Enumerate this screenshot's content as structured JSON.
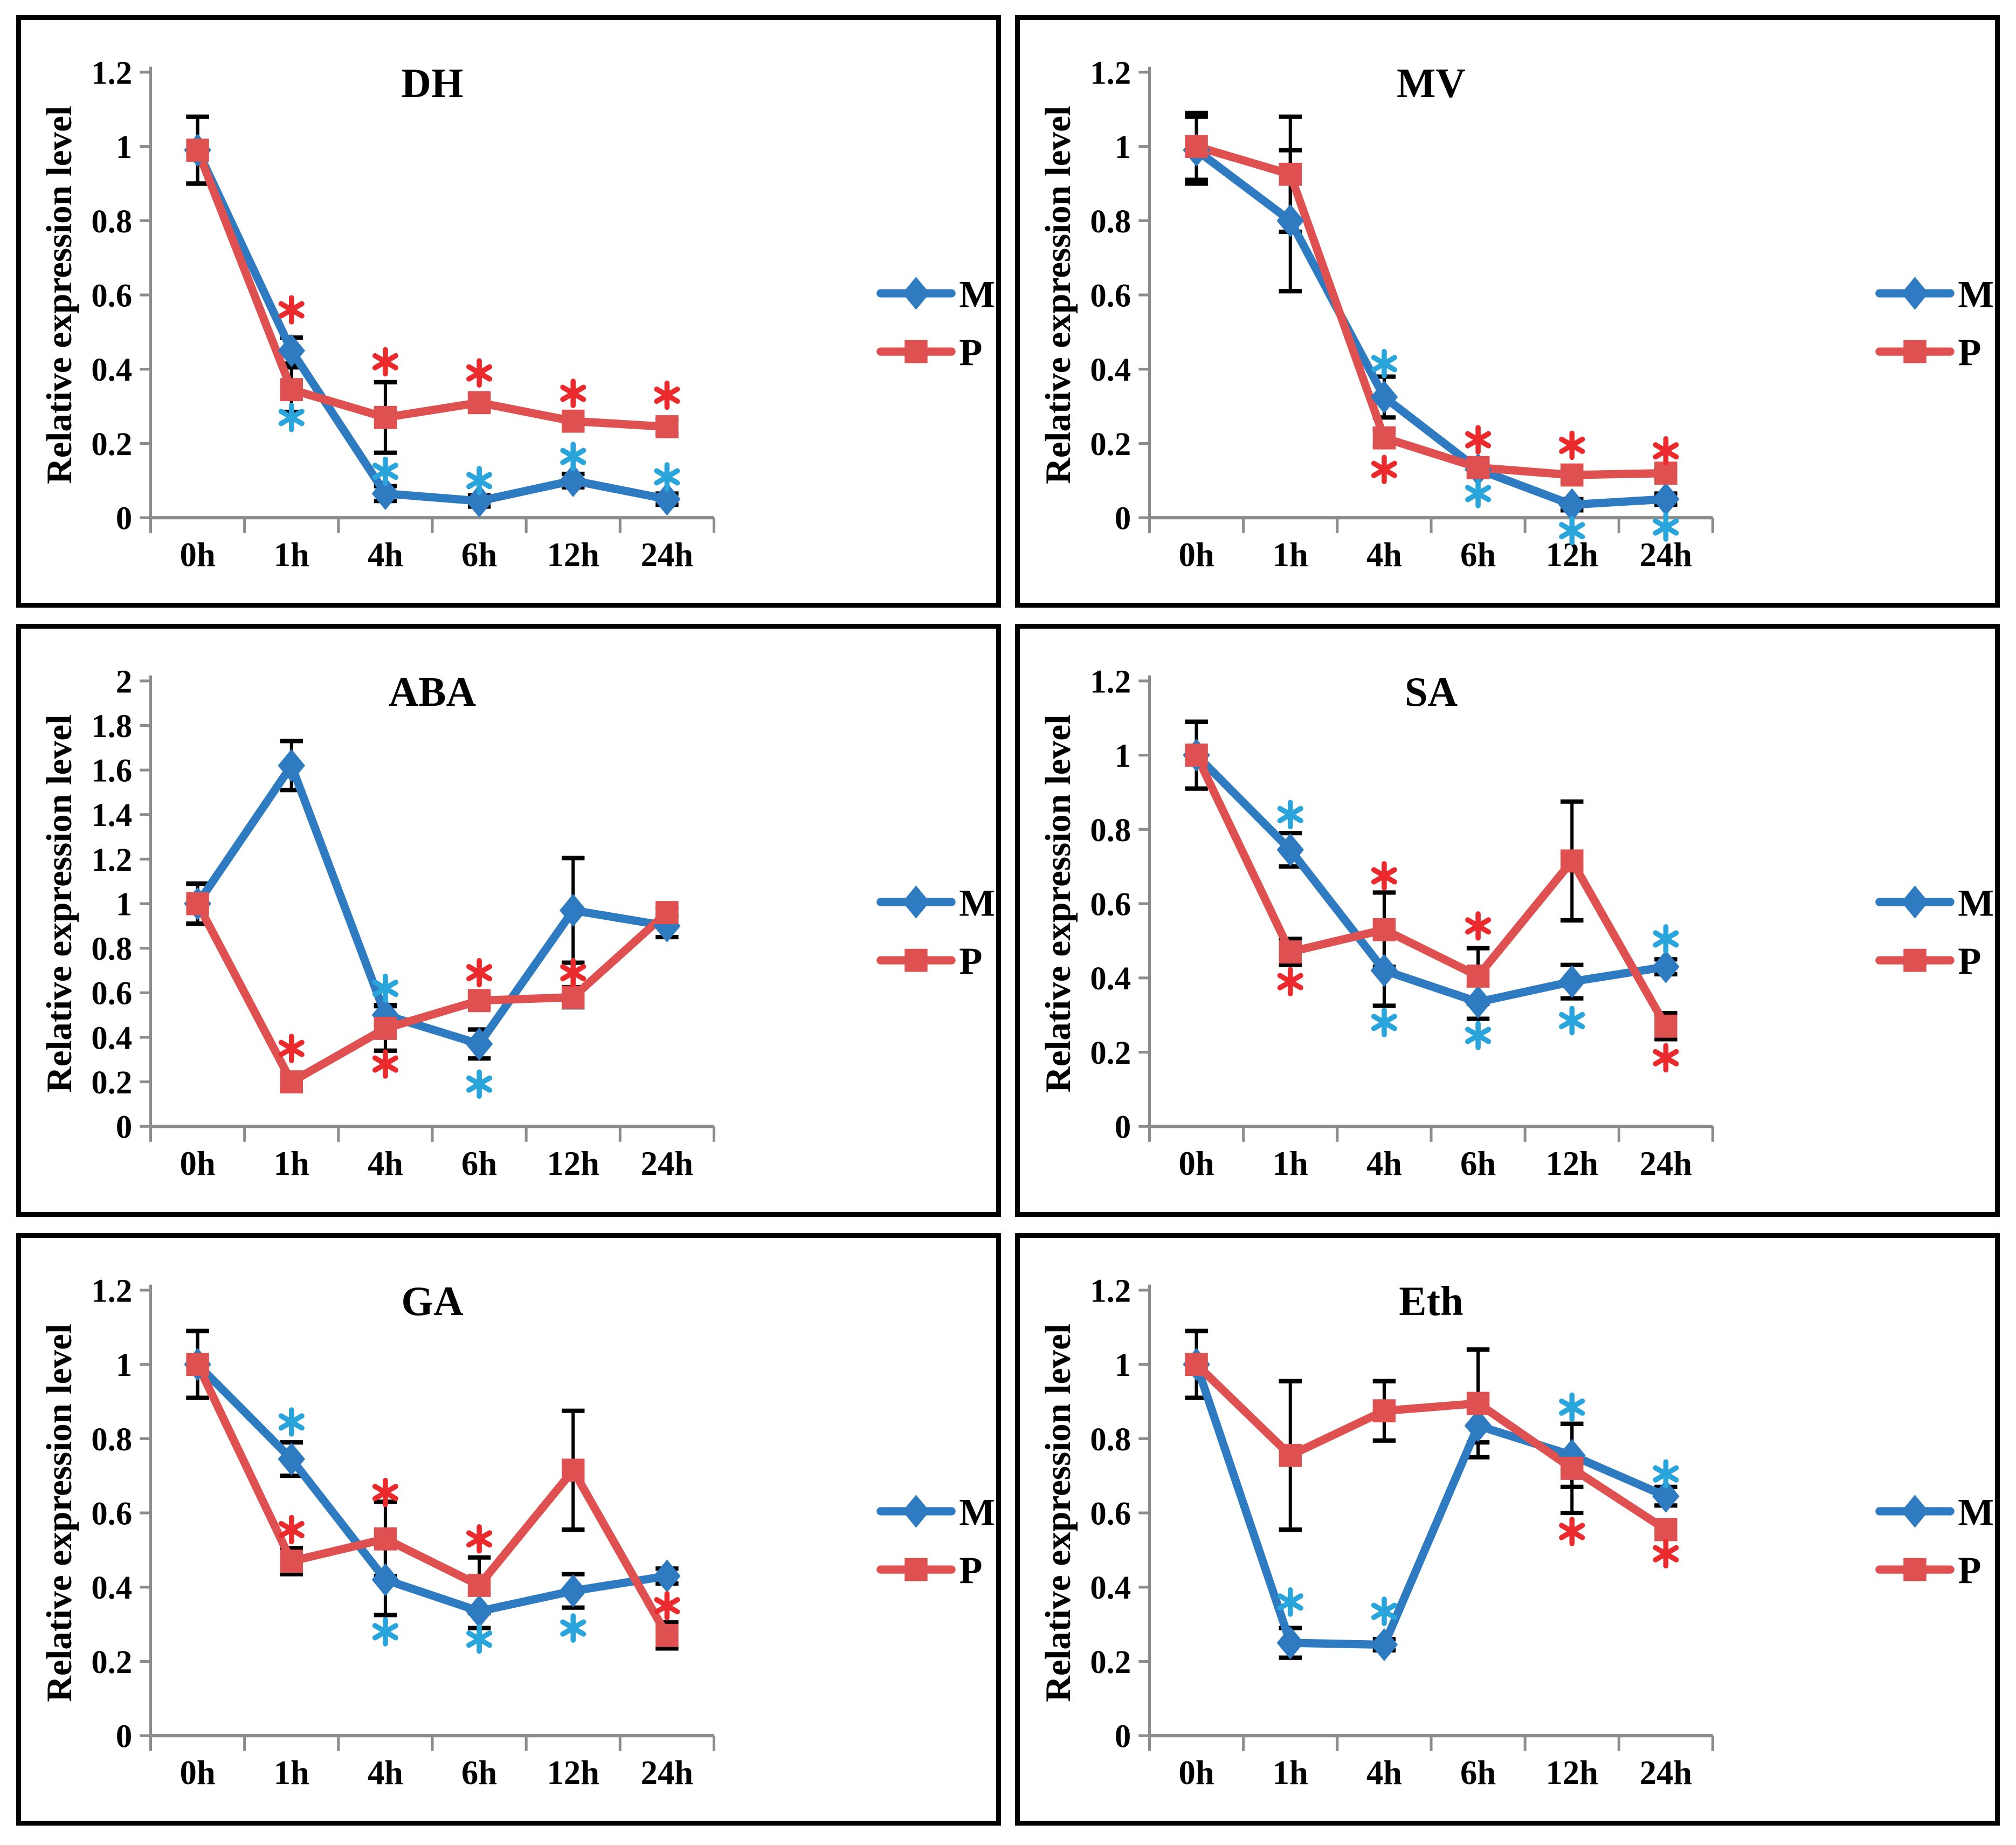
{
  "figure": {
    "rows": 3,
    "cols": 2,
    "y_axis_title": "Relative expression level",
    "categories": [
      "0h",
      "1h",
      "4h",
      "6h",
      "12h",
      "24h"
    ],
    "legend": {
      "entries": [
        {
          "label": "M"
        },
        {
          "label": "P"
        }
      ]
    }
  },
  "colors": {
    "m_line": "#2E7BC1",
    "p_line": "#DF5150",
    "m_asterisk": "#2AA5DC",
    "p_asterisk": "#EA2A2C",
    "axis": "#8C8C8C",
    "error_bar": "#000000",
    "text": "#000000",
    "panel_border": "#000000"
  },
  "chart_data": [
    {
      "type": "line",
      "title": "DH",
      "xlabel": "",
      "ylabel": "Relative expression level",
      "x": [
        "0h",
        "1h",
        "4h",
        "6h",
        "12h",
        "24h"
      ],
      "ylim": [
        0,
        1.2
      ],
      "yticks": [
        0,
        0.2,
        0.4,
        0.6,
        0.8,
        1,
        1.2
      ],
      "ytick_labels": [
        "0",
        "0.2",
        "0.4",
        "0.6",
        "0.8",
        "1",
        "1.2"
      ],
      "legend_position": "right",
      "grid": false,
      "series": [
        {
          "name": "M",
          "marker": "diamond",
          "values": [
            0.99,
            0.45,
            0.065,
            0.045,
            0.1,
            0.05
          ],
          "errors": [
            0.09,
            0.035,
            0.02,
            0.015,
            0.018,
            0.015
          ]
        },
        {
          "name": "P",
          "marker": "square",
          "values": [
            0.99,
            0.345,
            0.27,
            0.31,
            0.26,
            0.245
          ],
          "errors": [
            0.09,
            0.06,
            0.095,
            0.022,
            0.02,
            0.02
          ]
        }
      ],
      "asterisks": [
        {
          "cat": 1,
          "series": "P",
          "y": 0.56
        },
        {
          "cat": 2,
          "series": "P",
          "y": 0.42
        },
        {
          "cat": 3,
          "series": "P",
          "y": 0.39
        },
        {
          "cat": 4,
          "series": "P",
          "y": 0.335
        },
        {
          "cat": 5,
          "series": "P",
          "y": 0.33
        },
        {
          "cat": 1,
          "series": "M",
          "y": 0.27
        },
        {
          "cat": 2,
          "series": "M",
          "y": 0.125
        },
        {
          "cat": 3,
          "series": "M",
          "y": 0.1
        },
        {
          "cat": 4,
          "series": "M",
          "y": 0.165
        },
        {
          "cat": 5,
          "series": "M",
          "y": 0.11
        }
      ]
    },
    {
      "type": "line",
      "title": "MV",
      "xlabel": "",
      "ylabel": "Relative expression level",
      "x": [
        "0h",
        "1h",
        "4h",
        "6h",
        "12h",
        "24h"
      ],
      "ylim": [
        0,
        1.2
      ],
      "yticks": [
        0,
        0.2,
        0.4,
        0.6,
        0.8,
        1,
        1.2
      ],
      "ytick_labels": [
        "0",
        "0.2",
        "0.4",
        "0.6",
        "0.8",
        "1",
        "1.2"
      ],
      "legend_position": "right",
      "grid": false,
      "series": [
        {
          "name": "M",
          "marker": "diamond",
          "values": [
            0.99,
            0.8,
            0.325,
            0.13,
            0.035,
            0.05
          ],
          "errors": [
            0.09,
            0.19,
            0.055,
            0.02,
            0.015,
            0.015
          ]
        },
        {
          "name": "P",
          "marker": "square",
          "values": [
            1.0,
            0.925,
            0.215,
            0.135,
            0.115,
            0.12
          ],
          "errors": [
            0.09,
            0.155,
            0.022,
            0.02,
            0.015,
            0.015
          ]
        }
      ],
      "asterisks": [
        {
          "cat": 2,
          "series": "M",
          "y": 0.415
        },
        {
          "cat": 2,
          "series": "P",
          "y": 0.13
        },
        {
          "cat": 3,
          "series": "P",
          "y": 0.21
        },
        {
          "cat": 3,
          "series": "M",
          "y": 0.065
        },
        {
          "cat": 4,
          "series": "P",
          "y": 0.195
        },
        {
          "cat": 4,
          "series": "M",
          "y": -0.035
        },
        {
          "cat": 5,
          "series": "P",
          "y": 0.18
        },
        {
          "cat": 5,
          "series": "M",
          "y": -0.025
        }
      ]
    },
    {
      "type": "line",
      "title": "ABA",
      "xlabel": "",
      "ylabel": "Relative expression level",
      "x": [
        "0h",
        "1h",
        "4h",
        "6h",
        "12h",
        "24h"
      ],
      "ylim": [
        0,
        2
      ],
      "yticks": [
        0,
        0.2,
        0.4,
        0.6,
        0.8,
        1,
        1.2,
        1.4,
        1.6,
        1.8,
        2
      ],
      "ytick_labels": [
        "0",
        "0.2",
        "0.4",
        "0.6",
        "0.8",
        "1",
        "1.2",
        "1.4",
        "1.6",
        "1.8",
        "2"
      ],
      "legend_position": "right",
      "grid": false,
      "series": [
        {
          "name": "M",
          "marker": "diamond",
          "values": [
            1.0,
            1.62,
            0.5,
            0.37,
            0.97,
            0.9
          ],
          "errors": [
            0.09,
            0.11,
            0.045,
            0.065,
            0.235,
            0.05
          ]
        },
        {
          "name": "P",
          "marker": "square",
          "values": [
            1.0,
            0.2,
            0.44,
            0.565,
            0.58,
            0.96
          ],
          "errors": [
            0.09,
            0.035,
            0.1,
            0.03,
            0.045,
            0.02
          ]
        }
      ],
      "asterisks": [
        {
          "cat": 1,
          "series": "P",
          "y": 0.35
        },
        {
          "cat": 2,
          "series": "M",
          "y": 0.62
        },
        {
          "cat": 2,
          "series": "P",
          "y": 0.28
        },
        {
          "cat": 3,
          "series": "P",
          "y": 0.69
        },
        {
          "cat": 3,
          "series": "M",
          "y": 0.19
        },
        {
          "cat": 4,
          "series": "P",
          "y": 0.69
        }
      ]
    },
    {
      "type": "line",
      "title": "SA",
      "xlabel": "",
      "ylabel": "Relative expression level",
      "x": [
        "0h",
        "1h",
        "4h",
        "6h",
        "12h",
        "24h"
      ],
      "ylim": [
        0,
        1.2
      ],
      "yticks": [
        0,
        0.2,
        0.4,
        0.6,
        0.8,
        1,
        1.2
      ],
      "ytick_labels": [
        "0",
        "0.2",
        "0.4",
        "0.6",
        "0.8",
        "1",
        "1.2"
      ],
      "legend_position": "right",
      "grid": false,
      "series": [
        {
          "name": "M",
          "marker": "diamond",
          "values": [
            1.0,
            0.745,
            0.42,
            0.335,
            0.39,
            0.43
          ],
          "errors": [
            0.09,
            0.045,
            0.095,
            0.045,
            0.045,
            0.02
          ]
        },
        {
          "name": "P",
          "marker": "square",
          "values": [
            1.0,
            0.47,
            0.53,
            0.405,
            0.715,
            0.27
          ],
          "errors": [
            0.09,
            0.035,
            0.1,
            0.075,
            0.16,
            0.035
          ]
        }
      ],
      "asterisks": [
        {
          "cat": 1,
          "series": "M",
          "y": 0.84
        },
        {
          "cat": 1,
          "series": "P",
          "y": 0.39
        },
        {
          "cat": 2,
          "series": "P",
          "y": 0.675
        },
        {
          "cat": 2,
          "series": "M",
          "y": 0.28
        },
        {
          "cat": 3,
          "series": "P",
          "y": 0.54
        },
        {
          "cat": 3,
          "series": "M",
          "y": 0.245
        },
        {
          "cat": 4,
          "series": "M",
          "y": 0.285
        },
        {
          "cat": 5,
          "series": "M",
          "y": 0.505
        },
        {
          "cat": 5,
          "series": "P",
          "y": 0.185
        }
      ]
    },
    {
      "type": "line",
      "title": "GA",
      "xlabel": "",
      "ylabel": "Relative expression level",
      "x": [
        "0h",
        "1h",
        "4h",
        "6h",
        "12h",
        "24h"
      ],
      "ylim": [
        0,
        1.2
      ],
      "yticks": [
        0,
        0.2,
        0.4,
        0.6,
        0.8,
        1,
        1.2
      ],
      "ytick_labels": [
        "0",
        "0.2",
        "0.4",
        "0.6",
        "0.8",
        "1",
        "1.2"
      ],
      "legend_position": "right",
      "grid": false,
      "series": [
        {
          "name": "M",
          "marker": "diamond",
          "values": [
            1.0,
            0.745,
            0.42,
            0.335,
            0.39,
            0.43
          ],
          "errors": [
            0.09,
            0.045,
            0.095,
            0.045,
            0.045,
            0.02
          ]
        },
        {
          "name": "P",
          "marker": "square",
          "values": [
            1.0,
            0.47,
            0.53,
            0.405,
            0.715,
            0.27
          ],
          "errors": [
            0.09,
            0.035,
            0.1,
            0.075,
            0.16,
            0.035
          ]
        }
      ],
      "asterisks": [
        {
          "cat": 1,
          "series": "M",
          "y": 0.845
        },
        {
          "cat": 1,
          "series": "P",
          "y": 0.555
        },
        {
          "cat": 2,
          "series": "P",
          "y": 0.655
        },
        {
          "cat": 2,
          "series": "M",
          "y": 0.28
        },
        {
          "cat": 3,
          "series": "P",
          "y": 0.53
        },
        {
          "cat": 3,
          "series": "M",
          "y": 0.26
        },
        {
          "cat": 4,
          "series": "M",
          "y": 0.29
        },
        {
          "cat": 5,
          "series": "P",
          "y": 0.35
        }
      ]
    },
    {
      "type": "line",
      "title": "Eth",
      "xlabel": "",
      "ylabel": "Relative expression level",
      "x": [
        "0h",
        "1h",
        "4h",
        "6h",
        "12h",
        "24h"
      ],
      "ylim": [
        0,
        1.2
      ],
      "yticks": [
        0,
        0.2,
        0.4,
        0.6,
        0.8,
        1,
        1.2
      ],
      "ytick_labels": [
        "0",
        "0.2",
        "0.4",
        "0.6",
        "0.8",
        "1",
        "1.2"
      ],
      "legend_position": "right",
      "grid": false,
      "series": [
        {
          "name": "M",
          "marker": "diamond",
          "values": [
            1.0,
            0.25,
            0.245,
            0.835,
            0.755,
            0.645
          ],
          "errors": [
            0.09,
            0.04,
            0.015,
            0.045,
            0.085,
            0.025
          ]
        },
        {
          "name": "P",
          "marker": "square",
          "values": [
            1.0,
            0.755,
            0.875,
            0.895,
            0.72,
            0.555
          ],
          "errors": [
            0.09,
            0.2,
            0.08,
            0.145,
            0.12,
            0
          ]
        }
      ],
      "asterisks": [
        {
          "cat": 1,
          "series": "M",
          "y": 0.36
        },
        {
          "cat": 2,
          "series": "M",
          "y": 0.335
        },
        {
          "cat": 4,
          "series": "M",
          "y": 0.885
        },
        {
          "cat": 4,
          "series": "P",
          "y": 0.55
        },
        {
          "cat": 5,
          "series": "M",
          "y": 0.705
        },
        {
          "cat": 5,
          "series": "P",
          "y": 0.49
        }
      ]
    }
  ]
}
